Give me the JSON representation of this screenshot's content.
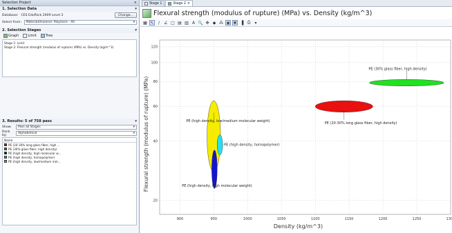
{
  "panel": {
    "title": "Selection Project",
    "close": "×",
    "s1_title": "1. Selection Data",
    "db_label": "Database:",
    "db_value": "CES EduPack 2009 Level 3",
    "change_label": "Change...",
    "select_from_label": "Select from:",
    "select_from_value": "MaterialUniverse: Polymers - All",
    "s2_title": "2. Selection Stages",
    "graph_label": "Graph",
    "limit_label": "Limit",
    "tree_label": "Tree",
    "stages": [
      "Stage 1: Limit",
      "Stage 2: Flexural strength (modulus of rupture) (MPa) vs. Density (kg/m^3)"
    ],
    "s3_title": "3. Results: 5 of 758 pass",
    "show_label": "Show:",
    "show_value": "Pass all Stages",
    "rank_label": "Rank by:",
    "rank_value": "Alphabetical",
    "name_header": "Name",
    "results": [
      {
        "name": "PE (20-30% long glass fiber, high ...",
        "color": "#c00000"
      },
      {
        "name": "PE (30% glass fiber, high density)",
        "color": "#1a9a1a"
      },
      {
        "name": "PE (high density, high molecular w...",
        "color": "#1010a0"
      },
      {
        "name": "PE (high density, homopolymer)",
        "color": "#1aa0b0"
      },
      {
        "name": "PE (high density, low/medium mol...",
        "color": "#b09a10"
      }
    ]
  },
  "tabs": {
    "stage1": "Stage 1",
    "stage2": "Stage 2",
    "close": "×"
  },
  "chart_data": {
    "type": "scatter",
    "title": "Flexural strength (modulus of rupture) (MPa) vs. Density (kg/m^3)",
    "xlabel": "Density (kg/m^3)",
    "ylabel": "Flexural strength (modulus of rupture) (MPa)",
    "xlim": [
      870,
      1300
    ],
    "ylim": [
      17,
      130
    ],
    "yscale": "log",
    "grid": true,
    "xticks": [
      900,
      950,
      1000,
      1050,
      1100,
      1150,
      1200,
      1250,
      1300
    ],
    "yticks": [
      20,
      40,
      60,
      80,
      100,
      120
    ],
    "series": [
      {
        "name": "PE (high density, low/medium molecular weight)",
        "color": "#f5ec00",
        "x": [
          940,
          960
        ],
        "y": [
          28,
          64
        ]
      },
      {
        "name": "PE (high density, homopolymer)",
        "color": "#25e0f0",
        "x": [
          955,
          963
        ],
        "y": [
          34,
          43
        ]
      },
      {
        "name": "PE (high density, high molecular weight)",
        "color": "#1414d0",
        "x": [
          947,
          955
        ],
        "y": [
          23,
          36
        ]
      },
      {
        "name": "PE (20-30% long glass fiber, high density)",
        "color": "#e81010",
        "x": [
          1100,
          1185
        ],
        "y": [
          56,
          64
        ]
      },
      {
        "name": "PE (30% glass fiber, high density)",
        "color": "#22e022",
        "x": [
          1180,
          1290
        ],
        "y": [
          76,
          82
        ]
      }
    ]
  }
}
